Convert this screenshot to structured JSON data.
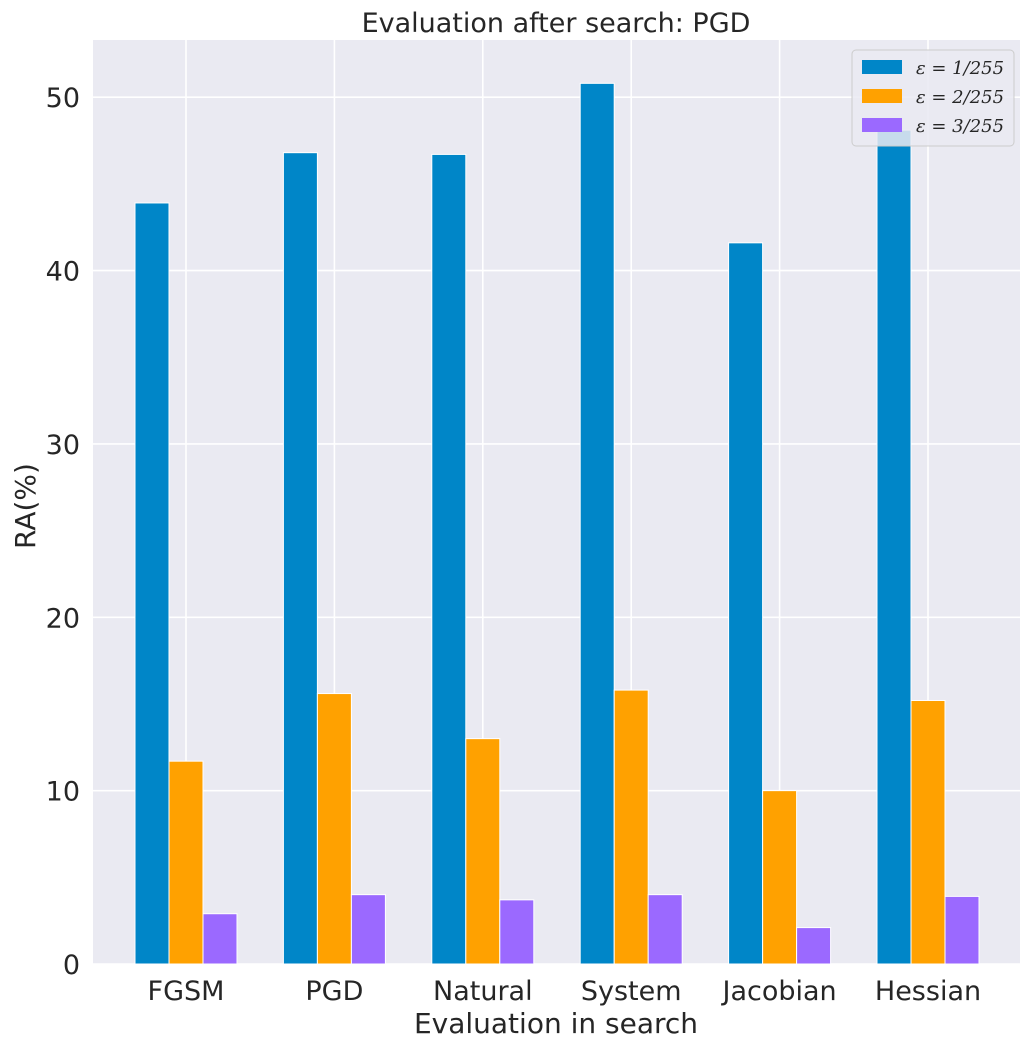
{
  "chart_data": {
    "type": "bar",
    "title": "Evaluation after search: PGD",
    "xlabel": "Evaluation in search",
    "ylabel": "RA(%)",
    "categories": [
      "FGSM",
      "PGD",
      "Natural",
      "System",
      "Jacobian",
      "Hessian"
    ],
    "series": [
      {
        "name": "ε = 1/255",
        "color": "#0086C8",
        "values": [
          43.9,
          46.8,
          46.7,
          50.8,
          41.6,
          48.1
        ]
      },
      {
        "name": "ε = 2/255",
        "color": "#FFA100",
        "values": [
          11.7,
          15.6,
          13.0,
          15.8,
          10.0,
          15.2
        ]
      },
      {
        "name": "ε = 3/255",
        "color": "#9B69FF",
        "values": [
          2.9,
          4.0,
          3.7,
          4.0,
          2.1,
          3.9
        ]
      }
    ],
    "ylim": [
      0,
      53.3
    ],
    "yticks": [
      0,
      10,
      20,
      30,
      40,
      50
    ],
    "grid": true,
    "legend_position": "top-right"
  }
}
